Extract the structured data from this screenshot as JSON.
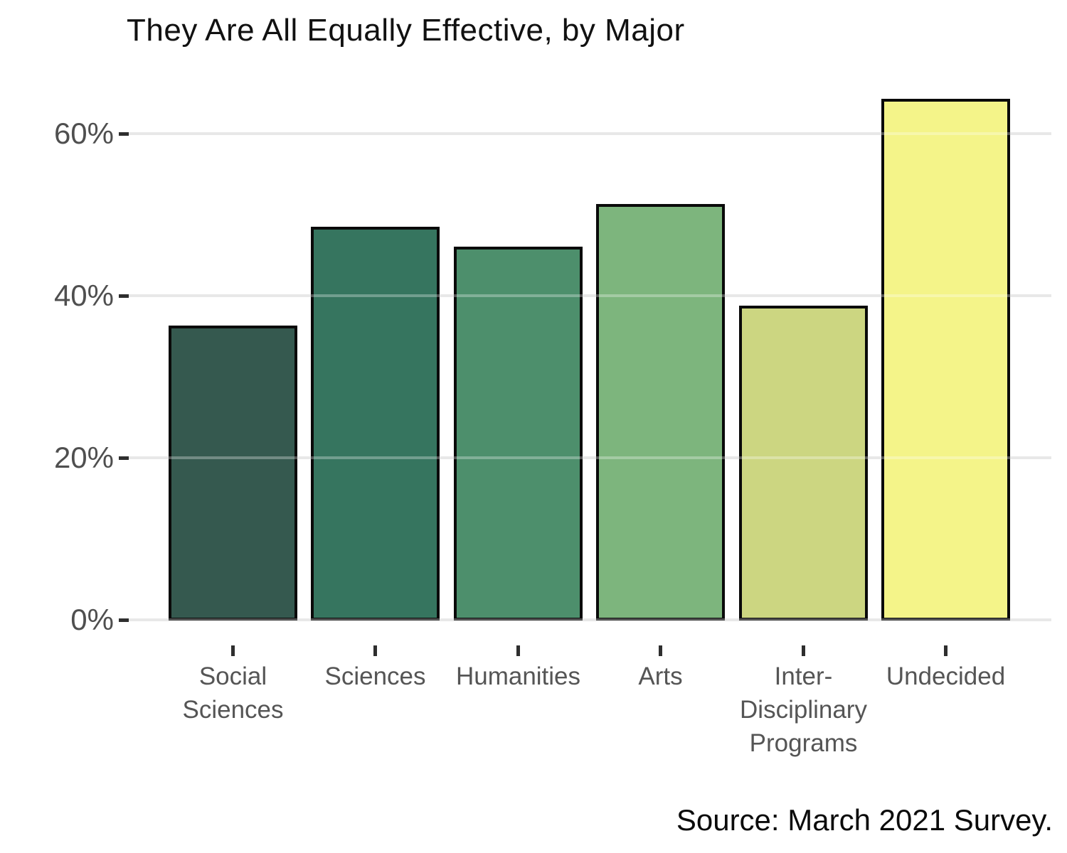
{
  "title": "They Are All Equally Effective, by Major",
  "source": "Source: March 2021 Survey.",
  "chart_data": {
    "type": "bar",
    "title": "They Are All Equally Effective, by Major",
    "categories": [
      "Social Sciences",
      "Sciences",
      "Humanities",
      "Arts",
      "Inter-Disciplinary Programs",
      "Undecided"
    ],
    "category_label_lines": [
      [
        "Social",
        "Sciences"
      ],
      [
        "Sciences"
      ],
      [
        "Humanities"
      ],
      [
        "Arts"
      ],
      [
        "Inter-",
        "Disciplinary",
        "Programs"
      ],
      [
        "Undecided"
      ]
    ],
    "values": [
      36.4,
      48.6,
      46.1,
      51.4,
      38.9,
      64.4
    ],
    "unit": "%",
    "xlabel": "",
    "ylabel": "",
    "ylim": [
      0,
      67.7
    ],
    "yticks": [
      0,
      20,
      40,
      60
    ],
    "ytick_labels": [
      "0%",
      "20%",
      "40%",
      "60%"
    ],
    "grid": "horizontal",
    "legend": "none",
    "bar_colors": [
      "#35594F",
      "#36755F",
      "#4D8F6C",
      "#7DB57D",
      "#CCD681",
      "#F4F489"
    ],
    "bar_border_color": "#0A0A0A",
    "annotations": [
      "Source: March 2021 Survey."
    ]
  },
  "colors": {
    "background": "#FFFFFF",
    "grid": "#DFDFDF",
    "grid_overlay": "rgba(255,255,255,0.30)",
    "tick": "#2E2E2E",
    "ytick_label": "#4F4F4F",
    "xtick_label": "#555555",
    "title": "#111111",
    "source": "#0B0B0B"
  }
}
